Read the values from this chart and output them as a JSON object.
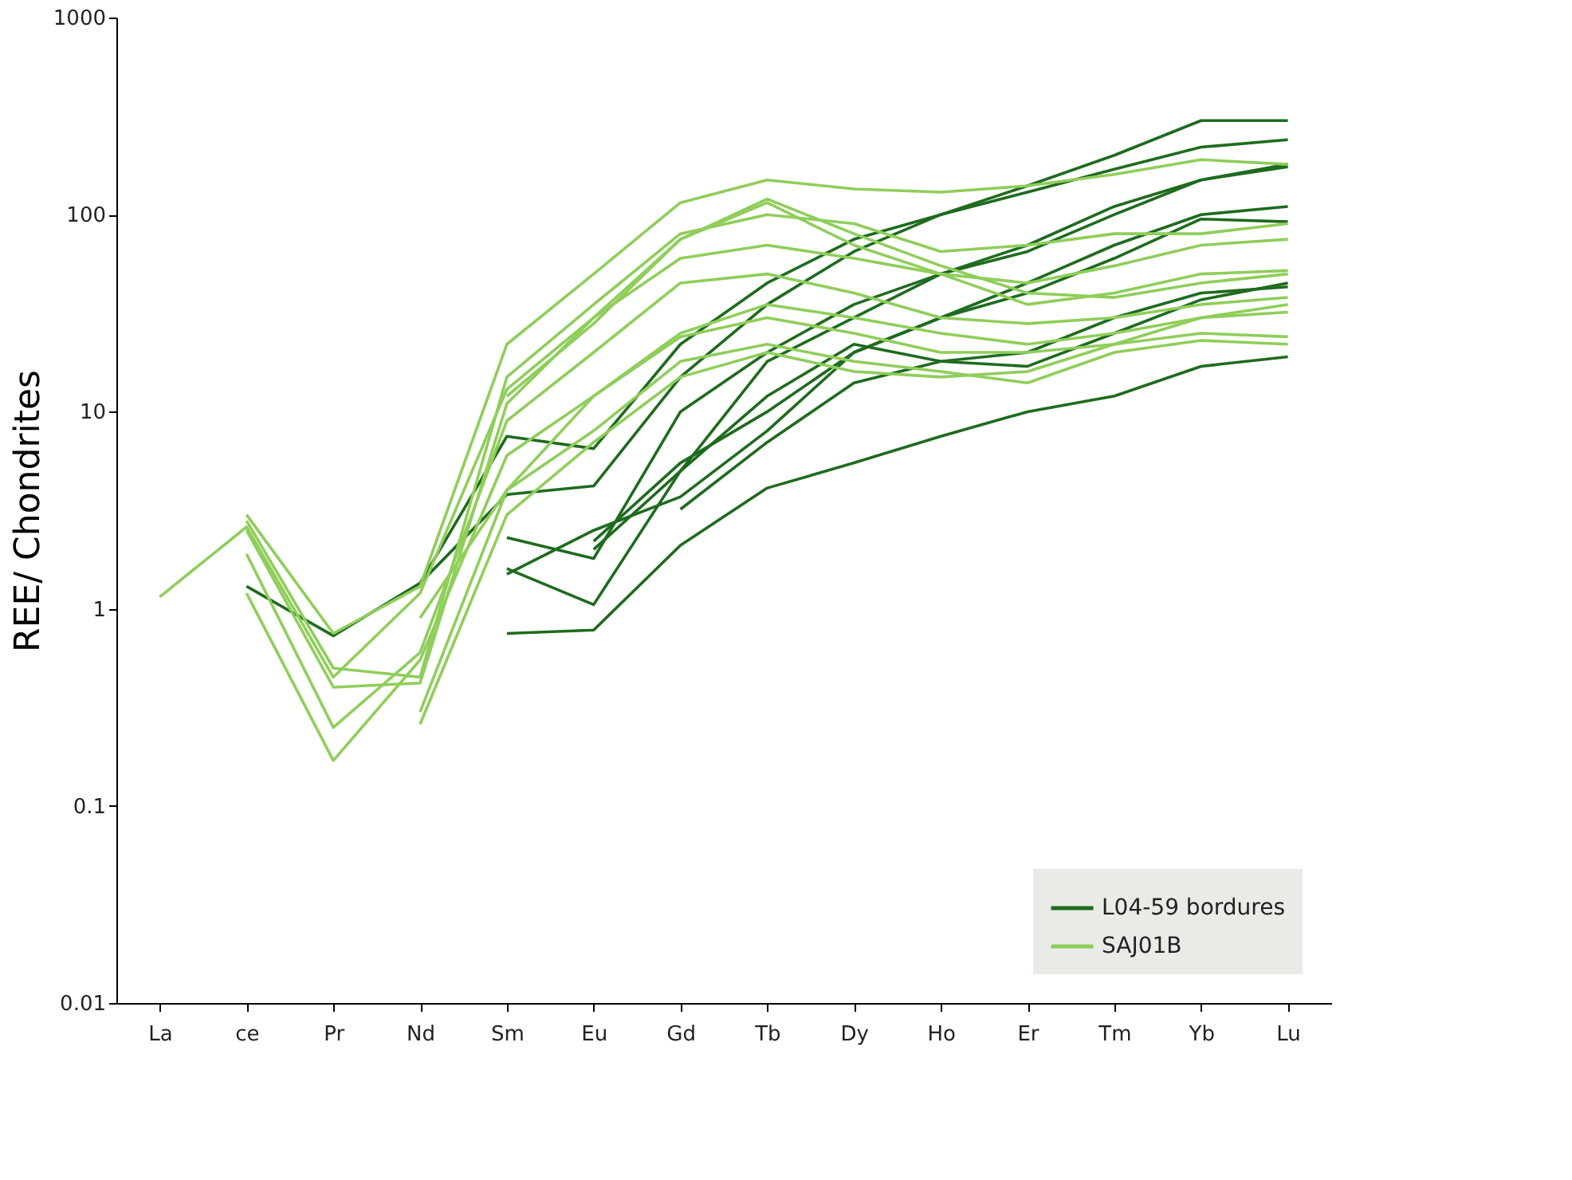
{
  "chart_data": {
    "type": "line",
    "ylabel": "REE/ Chondrites",
    "categories": [
      "La",
      "ce",
      "Pr",
      "Nd",
      "Sm",
      "Eu",
      "Gd",
      "Tb",
      "Dy",
      "Ho",
      "Er",
      "Tm",
      "Yb",
      "Lu"
    ],
    "log": "y",
    "ylim": [
      0.01,
      1000
    ],
    "yticks": [
      0.01,
      0.1,
      1,
      10,
      100,
      1000
    ],
    "grid": false,
    "legend": "bottom right",
    "marker": "none",
    "line_style": "solid",
    "series": [
      {
        "name": "L04-59 bordures",
        "color": "#1e6b1e",
        "values": [
          null,
          1.3,
          0.73,
          1.35,
          7.5,
          6.5,
          22,
          45,
          75,
          100,
          140,
          200,
          300,
          300
        ]
      },
      {
        "color": "#1e6b1e",
        "values": [
          null,
          null,
          null,
          1.35,
          3.8,
          4.2,
          15,
          35,
          65,
          100,
          130,
          170,
          220,
          240
        ]
      },
      {
        "color": "#1e6b1e",
        "values": [
          null,
          null,
          null,
          null,
          2.3,
          1.8,
          10,
          20,
          35,
          50,
          70,
          110,
          150,
          180
        ]
      },
      {
        "color": "#1e6b1e",
        "values": [
          null,
          null,
          null,
          null,
          1.6,
          1.05,
          5,
          18,
          30,
          50,
          65,
          100,
          150,
          175
        ]
      },
      {
        "color": "#1e6b1e",
        "values": [
          null,
          null,
          null,
          null,
          1.5,
          2.5,
          3.7,
          8,
          20,
          30,
          45,
          70,
          100,
          110
        ]
      },
      {
        "color": "#1e6b1e",
        "values": [
          null,
          null,
          null,
          null,
          null,
          2.2,
          5.5,
          10,
          20,
          30,
          40,
          60,
          95,
          92
        ]
      },
      {
        "color": "#1e6b1e",
        "values": [
          null,
          null,
          null,
          null,
          null,
          2.0,
          5,
          12,
          22,
          18,
          17,
          25,
          37,
          45
        ]
      },
      {
        "color": "#1e6b1e",
        "values": [
          null,
          null,
          null,
          null,
          null,
          null,
          3.2,
          7,
          14,
          18,
          20,
          30,
          40,
          43
        ]
      },
      {
        "color": "#1e6b1e",
        "values": [
          null,
          null,
          null,
          null,
          0.75,
          0.78,
          2.1,
          4.1,
          5.5,
          7.5,
          10,
          12,
          17,
          19
        ]
      },
      {
        "name": "SAJ01B",
        "color": "#8fce5a",
        "values": [
          1.15,
          2.6,
          0.45,
          1.2,
          13,
          30,
          75,
          120,
          80,
          55,
          40,
          38,
          45,
          50
        ]
      },
      {
        "color": "#8fce5a",
        "values": [
          null,
          3.0,
          0.75,
          1.3,
          22,
          50,
          115,
          150,
          135,
          130,
          140,
          160,
          190,
          180
        ]
      },
      {
        "color": "#8fce5a",
        "values": [
          null,
          2.8,
          0.5,
          0.45,
          15,
          35,
          80,
          100,
          90,
          65,
          70,
          80,
          80,
          90
        ]
      },
      {
        "color": "#8fce5a",
        "values": [
          null,
          2.5,
          0.4,
          0.42,
          11,
          30,
          60,
          70,
          60,
          50,
          35,
          40,
          50,
          52
        ]
      },
      {
        "color": "#8fce5a",
        "values": [
          null,
          1.9,
          0.25,
          0.6,
          9,
          20,
          45,
          50,
          40,
          30,
          28,
          30,
          35,
          38
        ]
      },
      {
        "color": "#8fce5a",
        "values": [
          null,
          1.2,
          0.17,
          0.55,
          6,
          12,
          25,
          35,
          30,
          25,
          22,
          25,
          30,
          35
        ]
      },
      {
        "color": "#8fce5a",
        "values": [
          null,
          null,
          null,
          0.9,
          4,
          12,
          24,
          30,
          25,
          20,
          20,
          22,
          25,
          24
        ]
      },
      {
        "color": "#8fce5a",
        "values": [
          null,
          null,
          null,
          0.3,
          4,
          8,
          18,
          22,
          18,
          16,
          14,
          20,
          23,
          22
        ]
      },
      {
        "color": "#8fce5a",
        "values": [
          null,
          null,
          null,
          0.26,
          3,
          7,
          15,
          20,
          16,
          15,
          16,
          22,
          30,
          32
        ]
      },
      {
        "color": "#8fce5a",
        "values": [
          null,
          null,
          null,
          null,
          12,
          28,
          75,
          115,
          70,
          50,
          45,
          55,
          70,
          75
        ]
      }
    ]
  }
}
